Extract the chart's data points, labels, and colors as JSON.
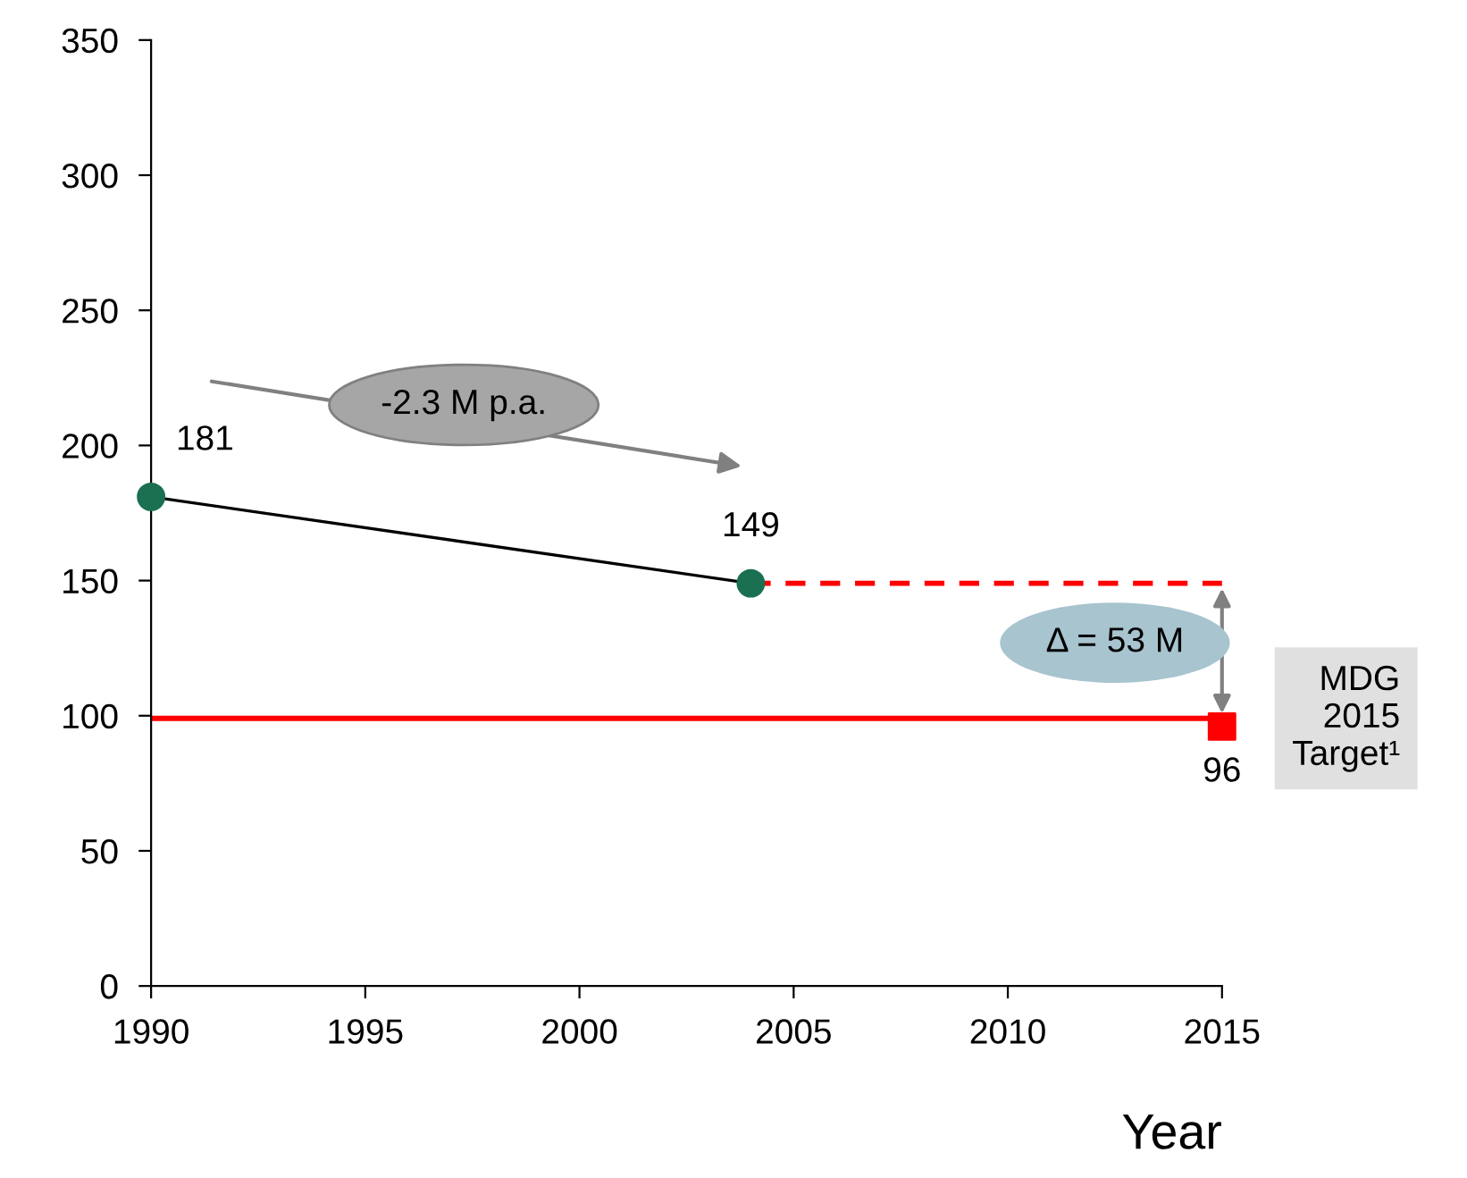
{
  "chart_data": {
    "type": "line",
    "xlabel": "Year",
    "series": [
      {
        "color": "#000000",
        "x": [
          1990,
          2004
        ],
        "values": [
          181,
          149
        ],
        "line_style": "solid",
        "marker": "none"
      },
      {
        "type": "scatter",
        "color": "#1a7050",
        "x": [
          1990,
          2004
        ],
        "values": [
          181,
          149
        ],
        "marker": "circle",
        "value_labels": [
          "181",
          "149"
        ]
      },
      {
        "color": "#ff0000",
        "x": [
          2004,
          2015
        ],
        "values": [
          149,
          149
        ],
        "line_style": "dashed",
        "marker": "none"
      },
      {
        "type": "scatter",
        "color": "#ff0000",
        "x": [
          2015
        ],
        "values": [
          96
        ],
        "marker": "square",
        "value_labels": [
          "96"
        ]
      }
    ],
    "ref_lines": [
      {
        "axis": "y",
        "value": 99,
        "label": "MDG 2015 Target¹",
        "color": "#ff0000"
      }
    ],
    "annotations": [
      "-2.3 M p.a.",
      "Δ = 53 M"
    ],
    "xlim": [
      1990,
      2015
    ],
    "xticks": [
      1990,
      1995,
      2000,
      2005,
      2010,
      2015
    ],
    "ylim": [
      0,
      350
    ],
    "yticks": [
      0,
      50,
      100,
      150,
      200,
      250,
      300,
      350
    ],
    "grid": false,
    "legend": false
  }
}
